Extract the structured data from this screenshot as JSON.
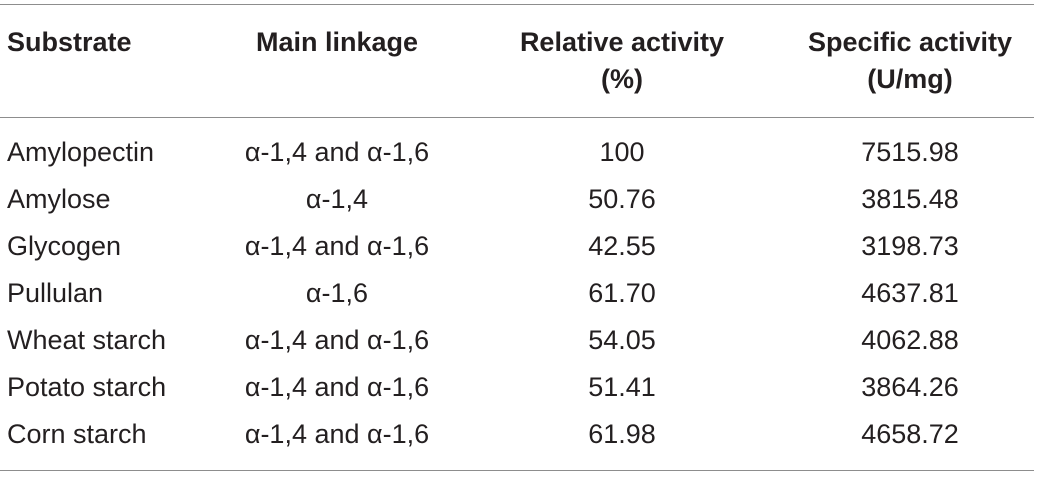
{
  "table": {
    "headers": {
      "substrate": "Substrate",
      "linkage": "Main linkage",
      "relative_line1": "Relative activity",
      "relative_line2": "(%)",
      "specific_line1": "Specific activity",
      "specific_line2": "(U/mg)"
    },
    "rows": [
      {
        "substrate": "Amylopectin",
        "linkage": "α-1,4 and α-1,6",
        "relative": "100",
        "specific": "7515.98"
      },
      {
        "substrate": "Amylose",
        "linkage": "α-1,4",
        "relative": "50.76",
        "specific": "3815.48"
      },
      {
        "substrate": "Glycogen",
        "linkage": "α-1,4 and α-1,6",
        "relative": "42.55",
        "specific": "3198.73"
      },
      {
        "substrate": "Pullulan",
        "linkage": "α-1,6",
        "relative": "61.70",
        "specific": "4637.81"
      },
      {
        "substrate": "Wheat starch",
        "linkage": "α-1,4 and α-1,6",
        "relative": "54.05",
        "specific": "4062.88"
      },
      {
        "substrate": "Potato starch",
        "linkage": "α-1,4 and α-1,6",
        "relative": "51.41",
        "specific": "3864.26"
      },
      {
        "substrate": "Corn starch",
        "linkage": "α-1,4 and α-1,6",
        "relative": "61.98",
        "specific": "4658.72"
      }
    ]
  }
}
